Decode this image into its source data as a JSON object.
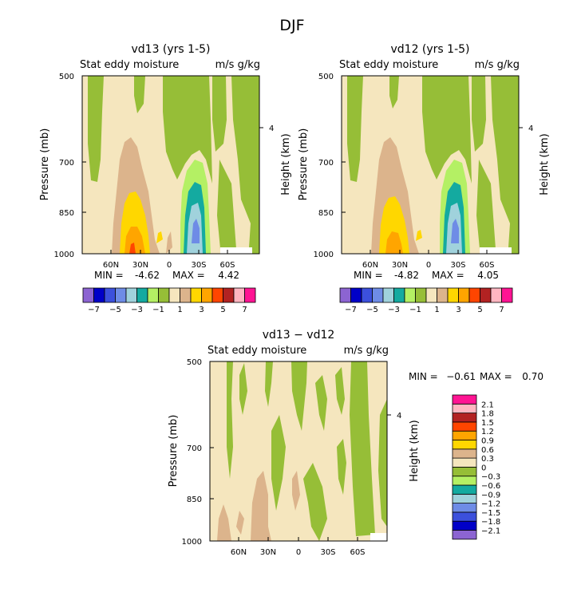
{
  "page": {
    "title": "DJF"
  },
  "colors": {
    "shade": [
      "#8c64d2",
      "#0000c8",
      "#3c50dc",
      "#6e8ce6",
      "#a0d2dc",
      "#14aaa0",
      "#b4f064",
      "#96be37",
      "#f5e6be",
      "#dcb48c",
      "#ffd700",
      "#ffa500",
      "#ff4500",
      "#b22222",
      "#ffb6c1",
      "#ff1493"
    ],
    "background": "#f5e6be",
    "frame": "#000000"
  },
  "chart_data": [
    {
      "type": "contour",
      "panel": "vd13",
      "title": "vd13 (yrs 1-5)",
      "subtitle_left": "Stat eddy moisture",
      "subtitle_right": "m/s g/kg",
      "ylabel": "Pressure (mb)",
      "ylabel_right": "Height (km)",
      "yticks": [
        "500",
        "700",
        "850",
        "1000"
      ],
      "ylim": [
        1000,
        500
      ],
      "yticks_right": [
        "4"
      ],
      "xticks": [
        "60N",
        "30N",
        "0",
        "30S",
        "60S"
      ],
      "stats": {
        "min_label": "MIN =",
        "min_value": "-4.62",
        "max_label": "MAX =",
        "max_value": "4.42"
      },
      "colorbar": {
        "orientation": "horizontal",
        "levels": [
          -7,
          -6,
          -5,
          -4,
          -3,
          -2,
          -1,
          0,
          1,
          2,
          3,
          4,
          5,
          6,
          7
        ],
        "labels": [
          "−7",
          "−5",
          "−3",
          "−1",
          "1",
          "3",
          "5",
          "7"
        ]
      }
    },
    {
      "type": "contour",
      "panel": "vd12",
      "title": "vd12 (yrs 1-5)",
      "subtitle_left": "Stat eddy moisture",
      "subtitle_right": "m/s g/kg",
      "ylabel": "Pressure (mb)",
      "ylabel_right": "Height (km)",
      "yticks": [
        "500",
        "700",
        "850",
        "1000"
      ],
      "ylim": [
        1000,
        500
      ],
      "yticks_right": [
        "4"
      ],
      "xticks": [
        "60N",
        "30N",
        "0",
        "30S",
        "60S"
      ],
      "stats": {
        "min_label": "MIN =",
        "min_value": "-4.82",
        "max_label": "MAX =",
        "max_value": "4.05"
      },
      "colorbar": {
        "orientation": "horizontal",
        "levels": [
          -7,
          -6,
          -5,
          -4,
          -3,
          -2,
          -1,
          0,
          1,
          2,
          3,
          4,
          5,
          6,
          7
        ],
        "labels": [
          "−7",
          "−5",
          "−3",
          "−1",
          "1",
          "3",
          "5",
          "7"
        ]
      }
    },
    {
      "type": "contour",
      "panel": "diff",
      "title": "vd13 − vd12",
      "subtitle_left": "Stat eddy moisture",
      "subtitle_right": "m/s g/kg",
      "ylabel": "Pressure (mb)",
      "ylabel_right": "Height (km)",
      "yticks": [
        "500",
        "700",
        "850",
        "1000"
      ],
      "ylim": [
        1000,
        500
      ],
      "yticks_right": [
        "4"
      ],
      "xticks": [
        "60N",
        "30N",
        "0",
        "30S",
        "60S"
      ],
      "stats": {
        "min_label": "MIN =",
        "min_value": "−0.61",
        "max_label": "MAX =",
        "max_value": "0.70"
      },
      "colorbar": {
        "orientation": "vertical",
        "levels": [
          -2.1,
          -1.8,
          -1.5,
          -1.2,
          -0.9,
          -0.6,
          -0.3,
          0,
          0.3,
          0.6,
          0.9,
          1.2,
          1.5,
          1.8,
          2.1
        ],
        "labels": [
          "2.1",
          "1.8",
          "1.5",
          "1.2",
          "0.9",
          "0.6",
          "0.3",
          "0",
          "−0.3",
          "−0.6",
          "−0.9",
          "−1.2",
          "−1.5",
          "−1.8",
          "−2.1"
        ]
      }
    }
  ]
}
